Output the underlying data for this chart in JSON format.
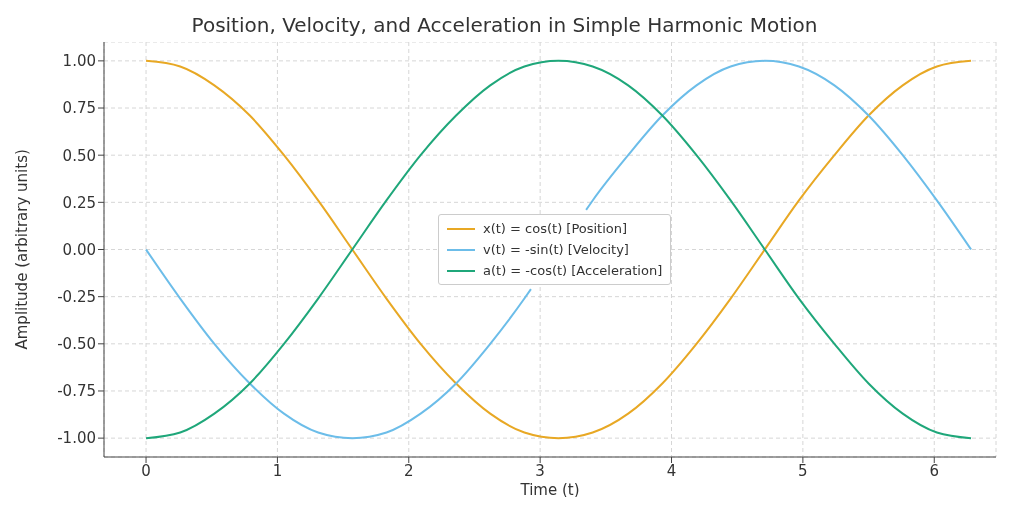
{
  "chart_data": {
    "type": "line",
    "title": "Position, Velocity, and Acceleration in Simple Harmonic Motion",
    "xlabel": "Time (t)",
    "ylabel": "Amplitude (arbitrary units)",
    "x": [
      0,
      0.26,
      0.52,
      0.79,
      1.05,
      1.31,
      1.57,
      1.83,
      2.09,
      2.36,
      2.62,
      2.88,
      3.14,
      3.4,
      3.67,
      3.93,
      4.19,
      4.45,
      4.71,
      4.97,
      5.24,
      5.5,
      5.76,
      6.02,
      6.28
    ],
    "series": [
      {
        "name": "x(t) = cos(t) [Position]",
        "color": "#e8a824",
        "values": [
          1,
          0.97,
          0.87,
          0.71,
          0.5,
          0.26,
          0,
          -0.26,
          -0.5,
          -0.71,
          -0.87,
          -0.97,
          -1,
          -0.97,
          -0.87,
          -0.71,
          -0.5,
          -0.26,
          0,
          0.26,
          0.5,
          0.71,
          0.87,
          0.97,
          1
        ]
      },
      {
        "name": "v(t) = -sin(t) [Velocity]",
        "color": "#6cbde9",
        "x": [
          0,
          0.26,
          0.52,
          0.79,
          1.05,
          1.31,
          1.57,
          1.83,
          2.09,
          2.36,
          2.62,
          2.88,
          2.93,
          3.14,
          3.35,
          3.4,
          3.67,
          3.93,
          4.19,
          4.45,
          4.71,
          4.97,
          5.24,
          5.5,
          5.76,
          6.02,
          6.28
        ],
        "values": [
          0,
          -0.26,
          -0.5,
          -0.71,
          -0.87,
          -0.97,
          -1,
          -0.97,
          -0.87,
          -0.71,
          -0.5,
          -0.26,
          -0.21,
          null,
          0.21,
          0.26,
          0.5,
          0.71,
          0.87,
          0.97,
          1,
          0.97,
          0.87,
          0.71,
          0.5,
          0.26,
          0
        ]
      },
      {
        "name": "a(t) = -cos(t) [Acceleration]",
        "color": "#1fa77a",
        "values": [
          -1,
          -0.97,
          -0.87,
          -0.71,
          -0.5,
          -0.26,
          0,
          0.26,
          0.5,
          0.71,
          0.87,
          0.97,
          1,
          0.97,
          0.87,
          0.71,
          0.5,
          0.26,
          0,
          -0.26,
          -0.5,
          -0.71,
          -0.87,
          -0.97,
          -1
        ]
      }
    ],
    "xlim": [
      -0.32,
      6.47
    ],
    "xticks": [
      0,
      1,
      2,
      3,
      4,
      5,
      6
    ],
    "ylim": [
      -1.1,
      1.1
    ],
    "yticks": [
      {
        "value": -1,
        "label": "-1.00"
      },
      {
        "value": -0.75,
        "label": "-0.75"
      },
      {
        "value": -0.5,
        "label": "-0.50"
      },
      {
        "value": -0.25,
        "label": "-0.25"
      },
      {
        "value": 0,
        "label": "0.00"
      },
      {
        "value": 0.25,
        "label": "0.25"
      },
      {
        "value": 0.5,
        "label": "0.50"
      },
      {
        "value": 0.75,
        "label": "0.75"
      },
      {
        "value": 1,
        "label": "1.00"
      }
    ],
    "grid": true,
    "legend": "center",
    "marker": "none",
    "line_style": "solid"
  }
}
